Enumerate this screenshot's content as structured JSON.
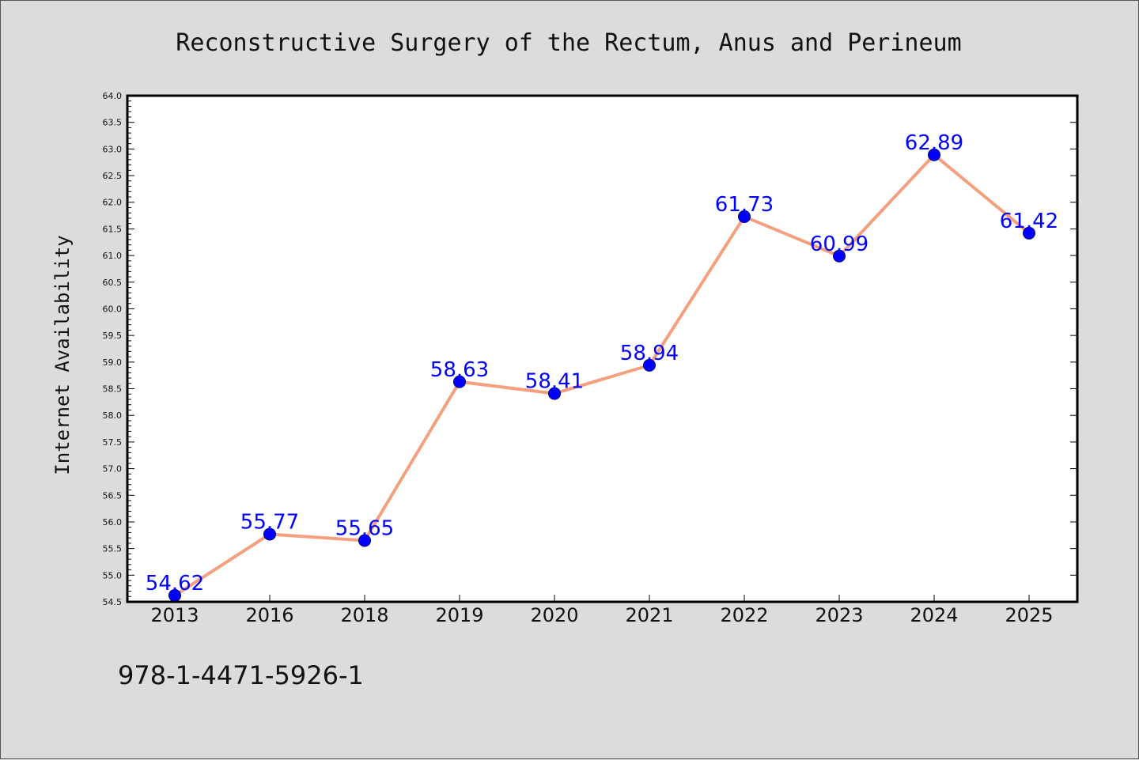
{
  "chart_data": {
    "type": "line",
    "title": "Reconstructive Surgery of the Rectum, Anus and Perineum",
    "xlabel": "",
    "ylabel": "Internet Availability",
    "categories": [
      "2013",
      "2016",
      "2018",
      "2019",
      "2020",
      "2021",
      "2022",
      "2023",
      "2024",
      "2025"
    ],
    "values": [
      54.62,
      55.77,
      55.65,
      58.63,
      58.41,
      58.94,
      61.73,
      60.99,
      62.89,
      61.42
    ],
    "data_labels": [
      "54.62",
      "55.77",
      "55.65",
      "58.63",
      "58.41",
      "58.94",
      "61.73",
      "60.99",
      "62.89",
      "61.42"
    ],
    "ylim": [
      54.5,
      64.0
    ],
    "yticks": [
      "54.5",
      "55.0",
      "55.5",
      "56.0",
      "56.5",
      "57.0",
      "57.5",
      "58.0",
      "58.5",
      "59.0",
      "59.5",
      "60.0",
      "60.5",
      "61.0",
      "61.5",
      "62.0",
      "62.5",
      "63.0",
      "63.5",
      "64.0"
    ],
    "grid": false,
    "legend": "none",
    "colors": {
      "line": "#f4a07f",
      "marker": "#0000ff",
      "marker_edge": "#00007a",
      "label": "#0000ff",
      "background": "#dcdcdc",
      "plot_bg": "#ffffff"
    }
  },
  "footer": {
    "text": "978-1-4471-5926-1"
  }
}
